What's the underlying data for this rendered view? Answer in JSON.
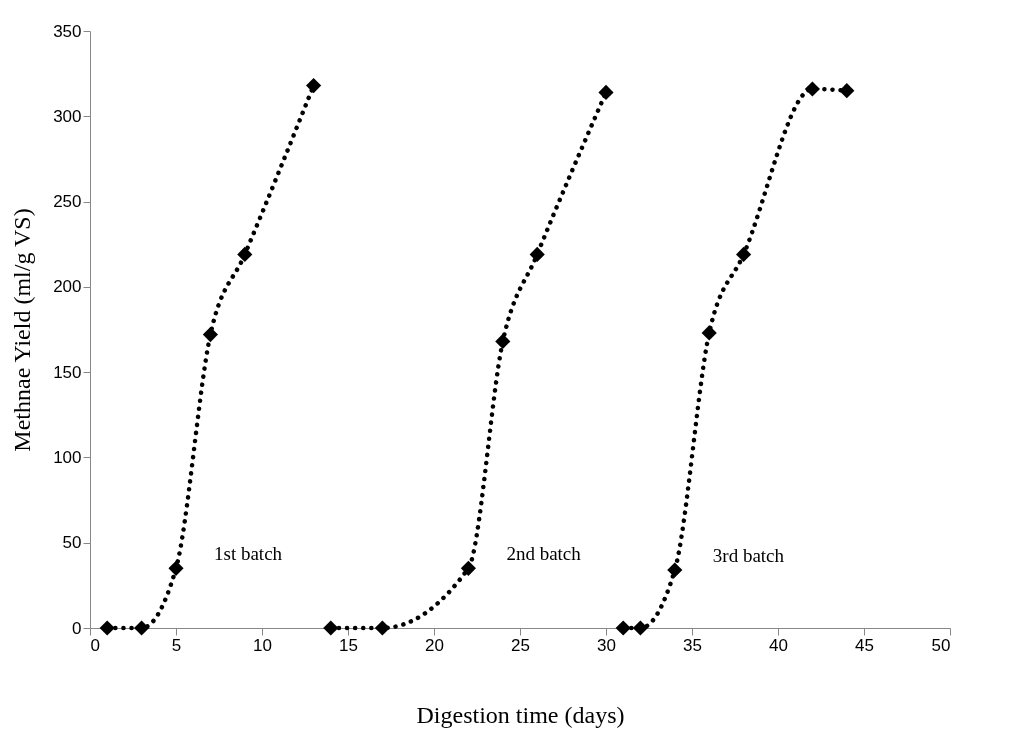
{
  "chart_data": {
    "type": "line",
    "xlabel": "Digestion time (days)",
    "ylabel": "Methnae Yield (ml/g VS)",
    "xlim": [
      0,
      50
    ],
    "xticks": [
      0,
      5,
      10,
      15,
      20,
      25,
      30,
      35,
      40,
      45,
      50
    ],
    "ylim": [
      0,
      350
    ],
    "yticks": [
      0,
      50,
      100,
      150,
      200,
      250,
      300,
      350
    ],
    "grid": false,
    "legend": false,
    "marker": "diamond",
    "line_style": "dotted",
    "series": [
      {
        "color": "#000000",
        "x": [
          1,
          3,
          5,
          7,
          9,
          13
        ],
        "values": [
          0,
          0,
          35,
          172,
          219,
          318
        ]
      },
      {
        "color": "#000000",
        "x": [
          14,
          17,
          22,
          24,
          26,
          30
        ],
        "values": [
          0,
          0,
          35,
          168,
          219,
          314
        ]
      },
      {
        "color": "#000000",
        "x": [
          31,
          32,
          34,
          36,
          38,
          42,
          44
        ],
        "values": [
          0,
          0,
          34,
          173,
          219,
          316,
          315
        ]
      }
    ],
    "annotations": [
      "1st batch",
      "2nd batch",
      "3rd batch"
    ]
  }
}
